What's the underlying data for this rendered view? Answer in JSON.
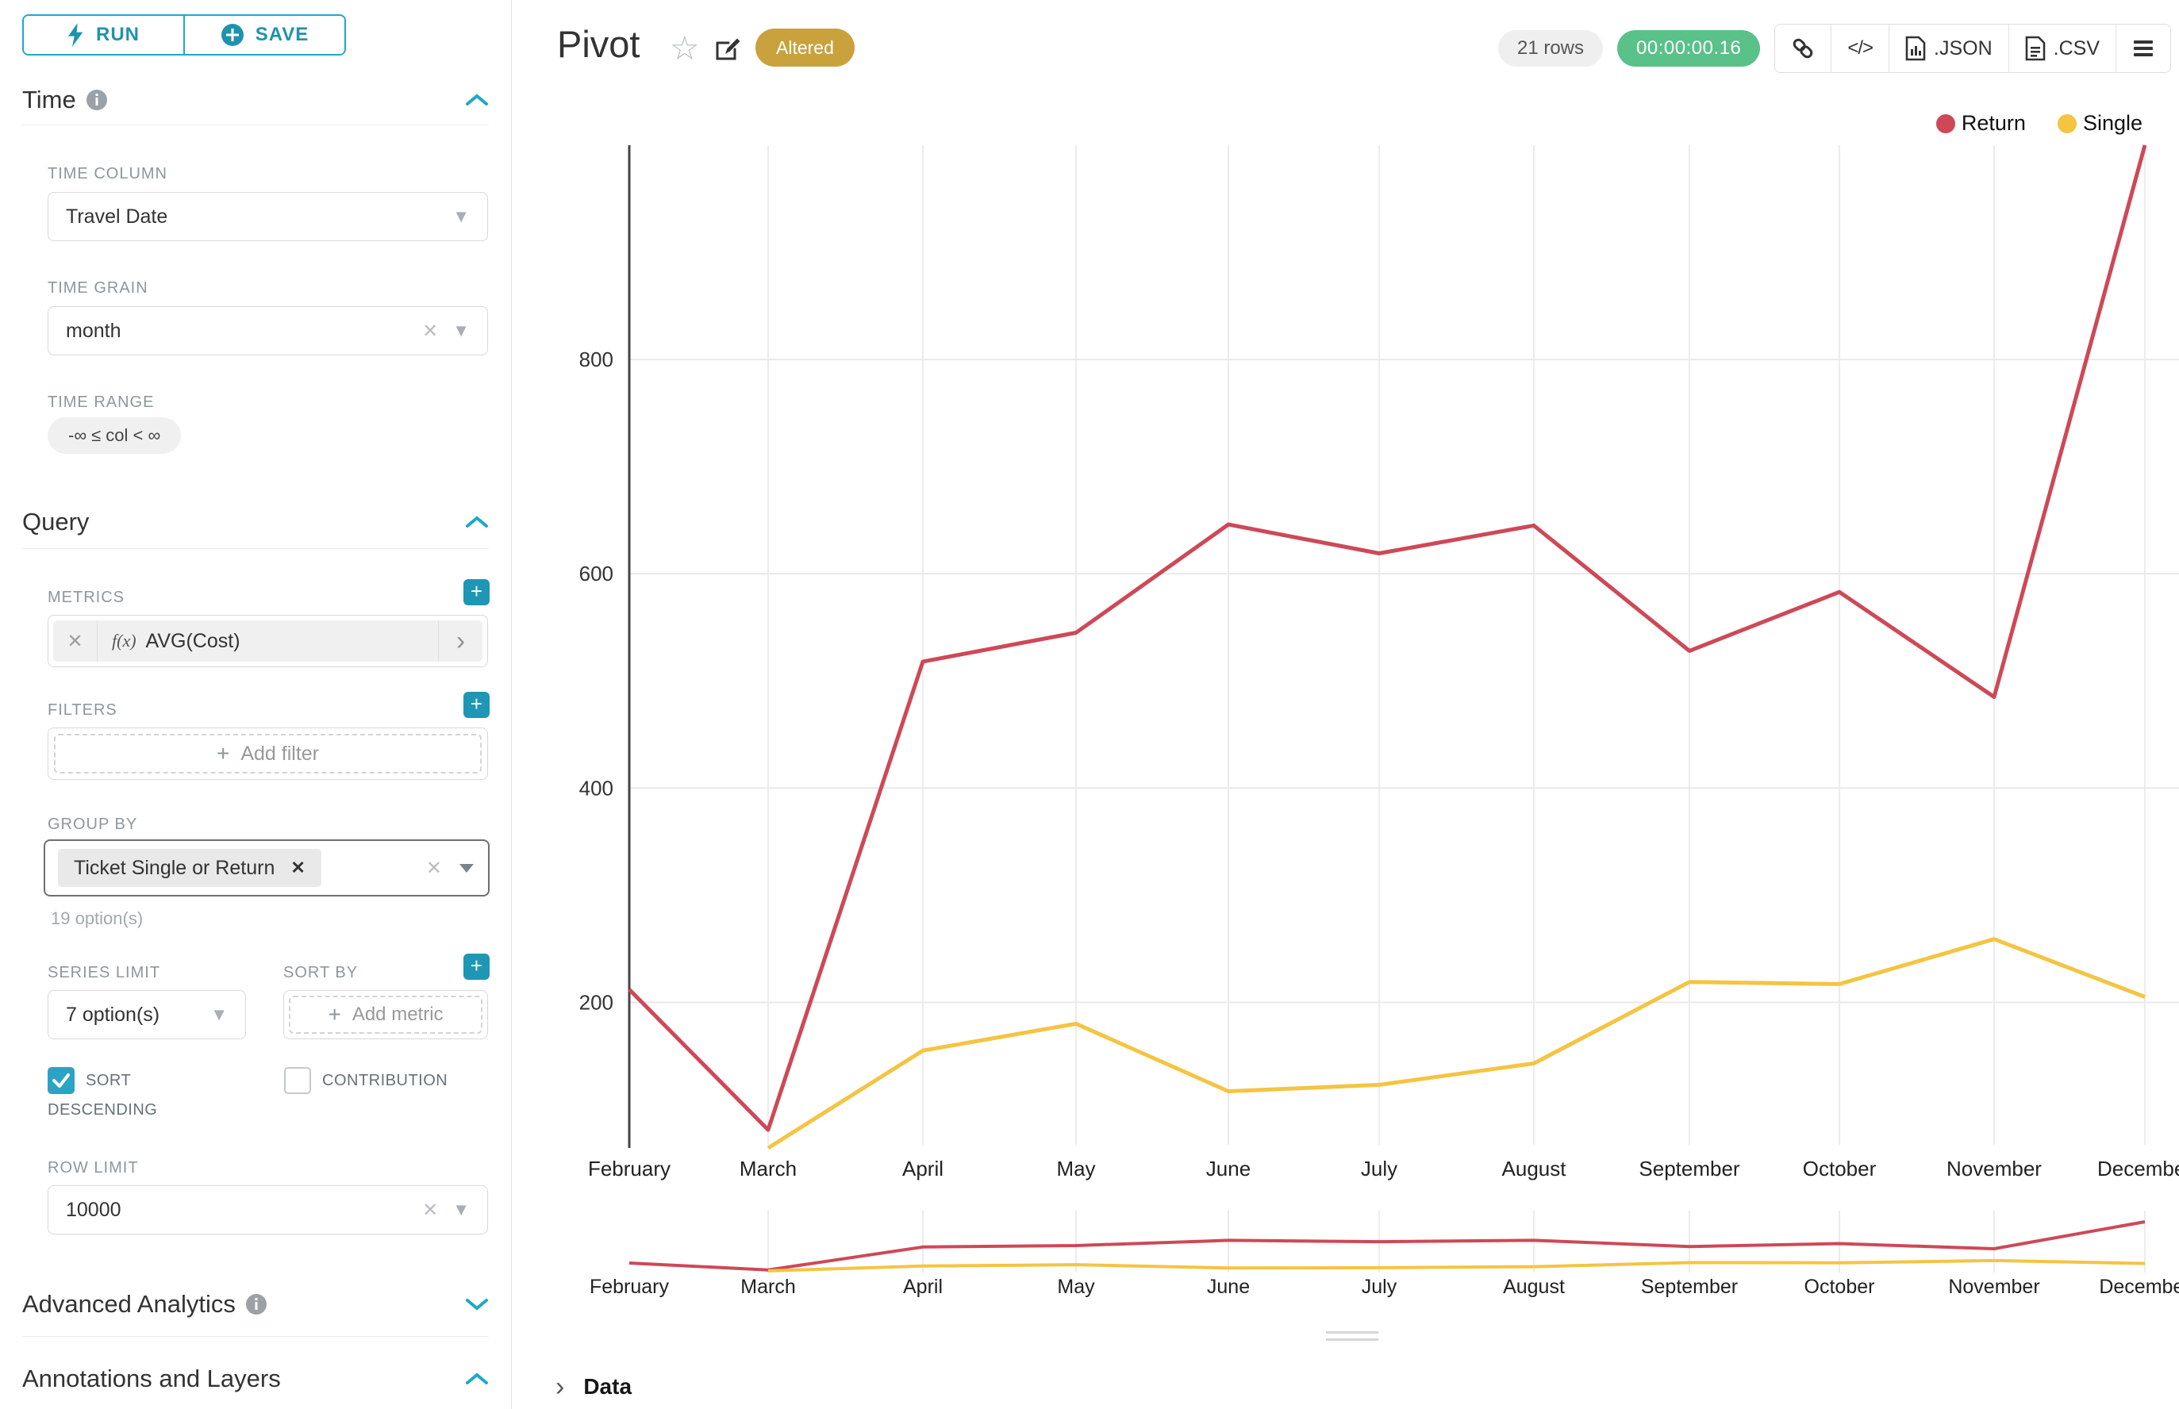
{
  "sidebar": {
    "run_label": "RUN",
    "save_label": "SAVE",
    "time": {
      "title": "Time",
      "time_column_label": "TIME COLUMN",
      "time_column_value": "Travel Date",
      "time_grain_label": "TIME GRAIN",
      "time_grain_value": "month",
      "time_range_label": "TIME RANGE",
      "time_range_value": "-∞ ≤ col < ∞"
    },
    "query": {
      "title": "Query",
      "metrics_label": "METRICS",
      "metric_prefix": "f(x)",
      "metric_value": "AVG(Cost)",
      "filters_label": "FILTERS",
      "add_filter_label": "Add filter",
      "group_by_label": "GROUP BY",
      "group_by_value": "Ticket Single or Return",
      "group_by_hint": "19 option(s)",
      "series_limit_label": "SERIES LIMIT",
      "series_limit_value": "7 option(s)",
      "sort_by_label": "SORT BY",
      "add_metric_label": "Add metric",
      "sort_descending_label_line1": "SORT",
      "sort_descending_label_line2": "DESCENDING",
      "sort_descending_checked": true,
      "contribution_label": "CONTRIBUTION",
      "contribution_checked": false,
      "row_limit_label": "ROW LIMIT",
      "row_limit_value": "10000"
    },
    "advanced_analytics_label": "Advanced Analytics",
    "annotations_label": "Annotations and Layers"
  },
  "header": {
    "title": "Pivot",
    "altered_badge": "Altered",
    "rows_badge": "21 rows",
    "timer": "00:00:00.16",
    "json_label": ".JSON",
    "csv_label": ".CSV",
    "code_glyph": "</>"
  },
  "chart_data": {
    "type": "line",
    "title": "Pivot",
    "x": [
      "February",
      "March",
      "April",
      "May",
      "June",
      "July",
      "August",
      "September",
      "October",
      "November",
      "December"
    ],
    "series": [
      {
        "name": "Return",
        "color": "#cd4957",
        "values": [
          212,
          81,
          518,
          545,
          646,
          619,
          645,
          528,
          583,
          485,
          1000
        ]
      },
      {
        "name": "Single",
        "color": "#f4c442",
        "values": [
          null,
          62,
          155,
          180,
          117,
          123,
          143,
          219,
          217,
          259,
          205
        ]
      }
    ],
    "yticks": [
      200,
      400,
      600,
      800
    ],
    "ylim": [
      67,
      1000
    ],
    "grid": true,
    "legend_position": "top-right",
    "has_range_selector": true
  },
  "data_panel": {
    "label": "Data"
  },
  "colors": {
    "accent": "#20a7c9",
    "return_series": "#cd4957",
    "single_series": "#f4c442",
    "altered_badge": "#c9a23d",
    "timer_green": "#5ac189"
  }
}
